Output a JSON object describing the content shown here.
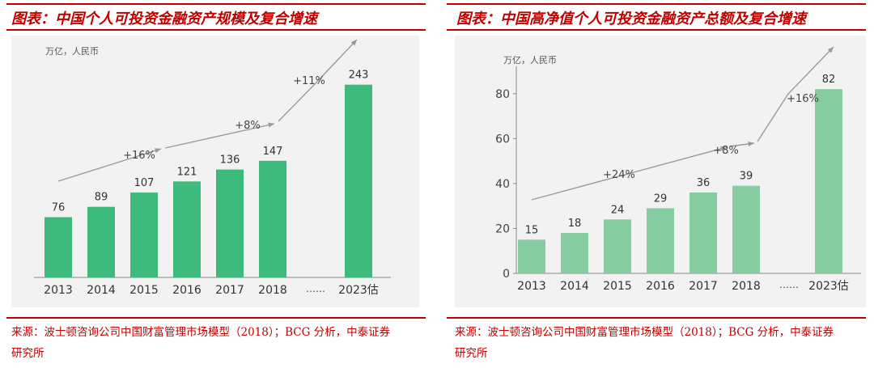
{
  "left_panel": {
    "title": "图表：中国个人可投资金融资产规模及复合增速",
    "source_line1": "来源：波士顿咨询公司中国财富管理市场模型（2018）；BCG 分析，中泰证券",
    "source_line2": "研究所"
  },
  "right_panel": {
    "title": "图表：中国高净值个人可投资金融资产总额及复合增速",
    "source_line1": "来源：波士顿咨询公司中国财富管理市场模型（2018）；BCG 分析，中泰证券",
    "source_line2": "研究所"
  },
  "chart_data": [
    {
      "type": "bar",
      "unit_label": "万亿，人民币",
      "categories": [
        "2013",
        "2014",
        "2015",
        "2016",
        "2017",
        "2018",
        "2023估"
      ],
      "values": [
        76,
        89,
        107,
        121,
        136,
        147,
        243
      ],
      "gap_label": "……",
      "ylim": [
        0,
        260
      ],
      "show_y_axis": false,
      "bar_color": "#3fba7d",
      "growth_annotations": [
        "+16%",
        "+8%",
        "+11%"
      ]
    },
    {
      "type": "bar",
      "unit_label": "万亿，人民币",
      "categories": [
        "2013",
        "2014",
        "2015",
        "2016",
        "2017",
        "2018",
        "2023估"
      ],
      "values": [
        15,
        18,
        24,
        29,
        36,
        39,
        82
      ],
      "gap_label": "……",
      "ylim": [
        0,
        90
      ],
      "yticks": [
        0,
        20,
        40,
        60,
        80
      ],
      "show_y_axis": true,
      "bar_color": "#86cca0",
      "growth_annotations": [
        "+24%",
        "+8%",
        "+16%"
      ]
    }
  ]
}
